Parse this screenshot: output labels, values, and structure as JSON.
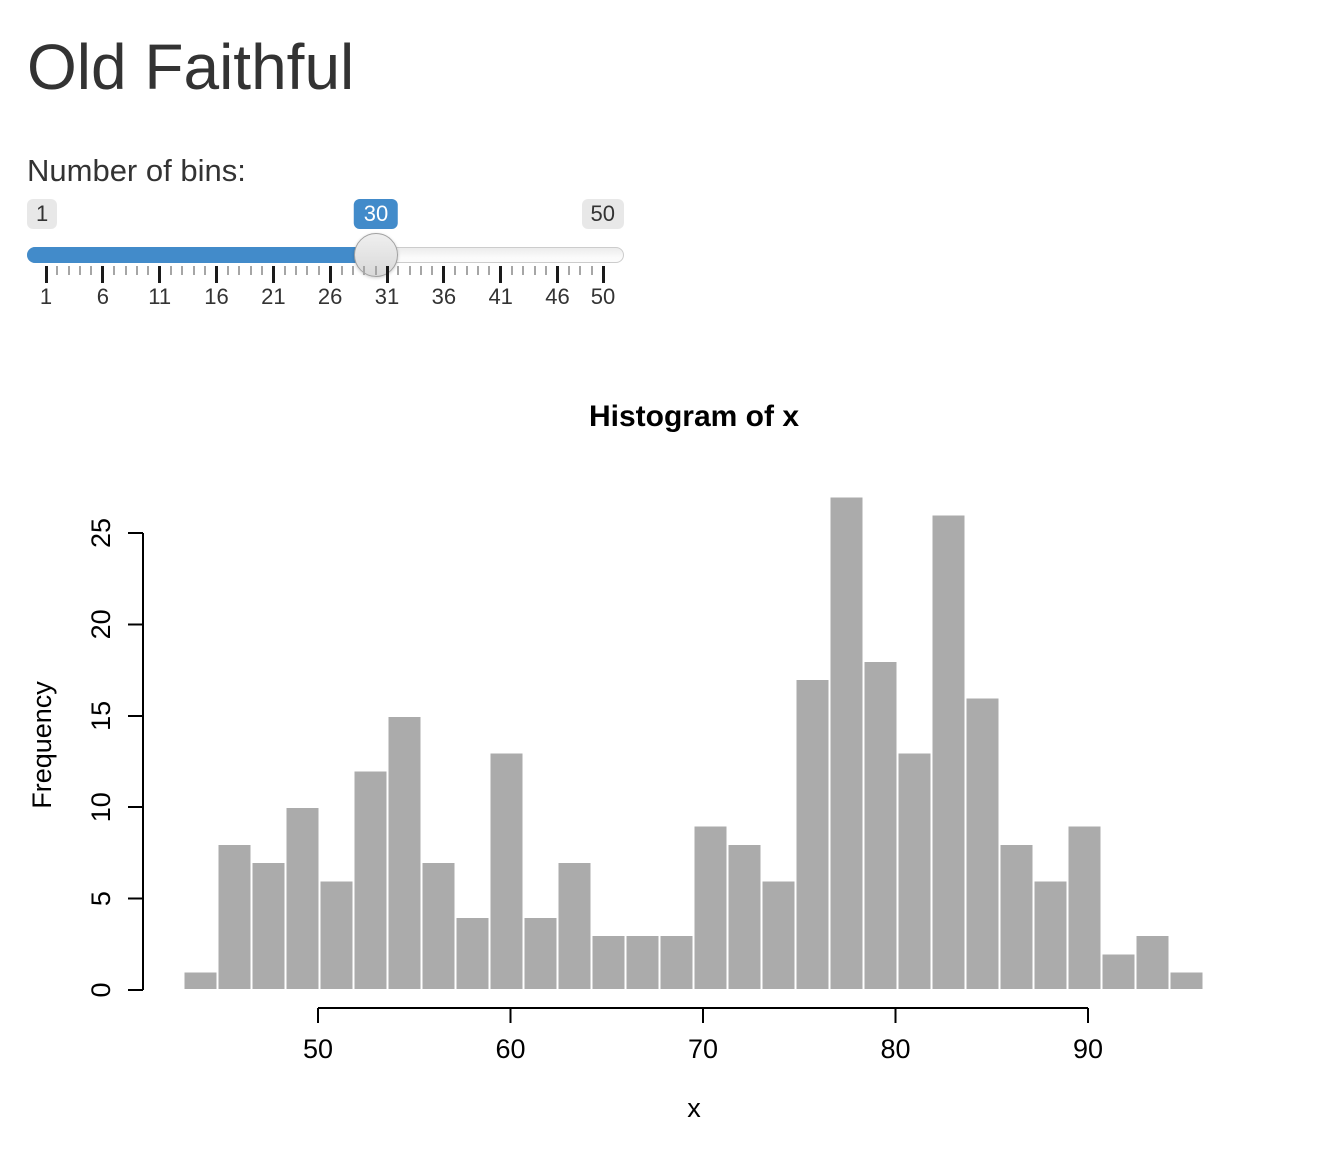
{
  "page": {
    "title": "Old Faithful"
  },
  "slider": {
    "label": "Number of bins:",
    "min": 1,
    "max": 50,
    "value": 30,
    "min_label": "1",
    "max_label": "50",
    "value_label": "30",
    "grid_labels": [
      1,
      6,
      11,
      16,
      21,
      26,
      31,
      36,
      41,
      46,
      50
    ],
    "accent_color": "#428bca"
  },
  "chart_data": {
    "type": "bar",
    "subtype": "histogram",
    "title": "Histogram of x",
    "xlabel": "x",
    "ylabel": "Frequency",
    "bins": {
      "start": 43,
      "end": 96,
      "count": 30,
      "width": 1.7667
    },
    "values": [
      1,
      8,
      7,
      10,
      6,
      12,
      15,
      7,
      4,
      13,
      4,
      7,
      3,
      3,
      3,
      9,
      8,
      6,
      17,
      27,
      18,
      13,
      26,
      16,
      8,
      6,
      9,
      2,
      3,
      1
    ],
    "x_ticks": [
      50,
      60,
      70,
      80,
      90
    ],
    "y_ticks": [
      0,
      5,
      10,
      15,
      20,
      25
    ],
    "xlim": [
      43,
      96
    ],
    "ylim": [
      0,
      27
    ],
    "bar_color": "#ABABAB",
    "bar_border": "#FFFFFF",
    "axis_color": "#000000",
    "grid": "off",
    "legend": "none"
  }
}
